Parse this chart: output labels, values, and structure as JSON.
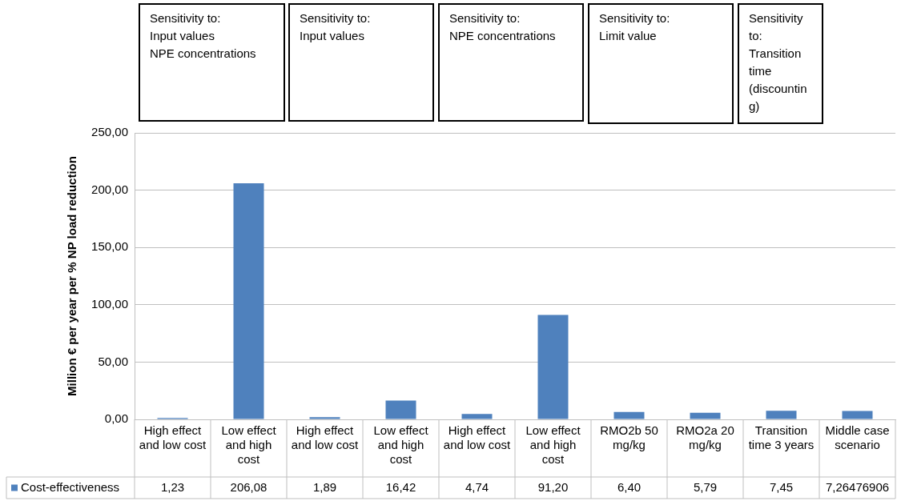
{
  "chart_data": {
    "type": "bar",
    "ylabel": "Million € per year per % NP load reduction",
    "categories": [
      "High effect and low cost",
      "Low effect and high cost",
      "High effect and low cost",
      "Low effect and high cost",
      "High effect and low cost",
      "Low effect and high cost",
      "RMO2b 50 mg/kg",
      "RMO2a 20 mg/kg",
      "Transition time 3 years",
      "Middle case scenario"
    ],
    "series": [
      {
        "name": "Cost-effectiveness",
        "color": "#4f81bd",
        "values": [
          1.23,
          206.08,
          1.89,
          16.42,
          4.74,
          91.2,
          6.4,
          5.79,
          7.45,
          7.26476906
        ],
        "value_labels": [
          "1,23",
          "206,08",
          "1,89",
          "16,42",
          "4,74",
          "91,20",
          "6,40",
          "5,79",
          "7,45",
          "7,26476906"
        ]
      }
    ],
    "ylim": [
      0,
      250
    ],
    "yticks": [
      {
        "value": 0,
        "label": "0,00"
      },
      {
        "value": 50,
        "label": "50,00"
      },
      {
        "value": 100,
        "label": "100,00"
      },
      {
        "value": 150,
        "label": "150,00"
      },
      {
        "value": 200,
        "label": "200,00"
      },
      {
        "value": 250,
        "label": "250,00"
      }
    ],
    "grid": "y",
    "legend": "bottom",
    "annotations": [
      "Sensitivity to:\nInput values\nNPE concentrations",
      "Sensitivity to:\nInput values",
      "Sensitivity to:\nNPE concentrations",
      "Sensitivity to:\nLimit value",
      "Sensitivity to: Transition time (discounting)"
    ]
  }
}
